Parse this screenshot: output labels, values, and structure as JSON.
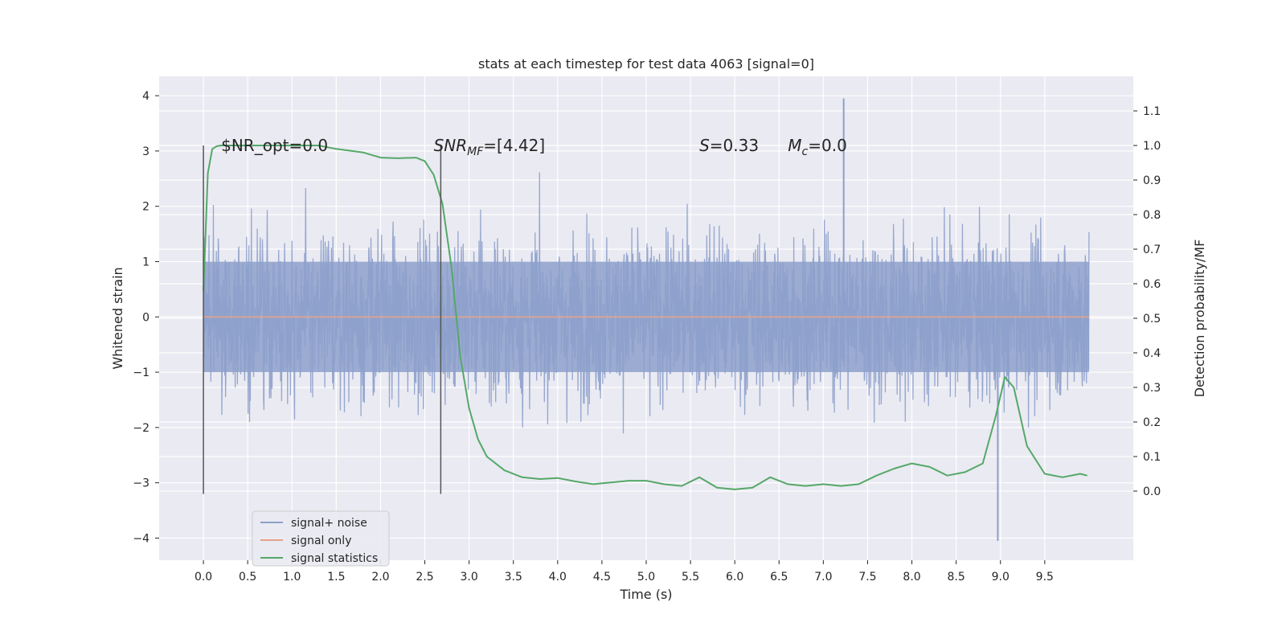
{
  "chart_data": {
    "type": "line",
    "title": "stats at each timestep for test data 4063 [signal=0]",
    "xlabel": "Time (s)",
    "ylabel": "Whitened strain",
    "ylabel_right": "Detection probability/MF",
    "xlim": [
      -0.5,
      10.5
    ],
    "ylim": [
      -4.4,
      4.35
    ],
    "ylim_right": [
      -0.2,
      1.2
    ],
    "x_ticks": [
      0.0,
      0.5,
      1.0,
      1.5,
      2.0,
      2.5,
      3.0,
      3.5,
      4.0,
      4.5,
      5.0,
      5.5,
      6.0,
      6.5,
      7.0,
      7.5,
      8.0,
      8.5,
      9.0,
      9.5
    ],
    "x_tick_labels": [
      "0.0",
      "0.5",
      "1.0",
      "1.5",
      "2.0",
      "2.5",
      "3.0",
      "3.5",
      "4.0",
      "4.5",
      "5.0",
      "5.5",
      "6.0",
      "6.5",
      "7.0",
      "7.5",
      "8.0",
      "8.5",
      "9.0",
      "9.5"
    ],
    "y_ticks": [
      -4,
      -3,
      -2,
      -1,
      0,
      1,
      2,
      3,
      4
    ],
    "y_tick_labels": [
      "−4",
      "−3",
      "−2",
      "−1",
      "0",
      "1",
      "2",
      "3",
      "4"
    ],
    "y_ticks_right": [
      0.0,
      0.1,
      0.2,
      0.3,
      0.4,
      0.5,
      0.6,
      0.7,
      0.8,
      0.9,
      1.0,
      1.1
    ],
    "y_tick_labels_right": [
      "0.0",
      "0.1",
      "0.2",
      "0.3",
      "0.4",
      "0.5",
      "0.6",
      "0.7",
      "0.8",
      "0.9",
      "1.0",
      "1.1"
    ],
    "grid": true,
    "legend_position": "lower-left",
    "annotations": [
      {
        "text": "$NR_opt=0.0",
        "x": 0.2,
        "y": 3.1
      },
      {
        "text": "SNR",
        "sub": "MF",
        "suffix": "=[4.42]",
        "x": 2.6,
        "y": 3.1,
        "italic": true
      },
      {
        "text": "S",
        "suffix": "=0.33",
        "x": 5.6,
        "y": 3.1,
        "italic": true
      },
      {
        "text": "M",
        "sub": "c",
        "suffix": "=0.0",
        "x": 6.6,
        "y": 3.1,
        "italic": true
      }
    ],
    "vlines": [
      {
        "x": 0.0,
        "ymin": -3.2,
        "ymax": 3.1
      },
      {
        "x": 2.68,
        "ymin": -3.2,
        "ymax": 3.1
      }
    ],
    "series": [
      {
        "name": "signal+ noise",
        "color": "#8da0cb",
        "axis": "left",
        "kind": "noise",
        "x_range": [
          0.0,
          10.0
        ],
        "envelope": {
          "core_amplitude": 1.0,
          "max_peak": 3.95,
          "min_peak": -4.05
        }
      },
      {
        "name": "signal only",
        "color": "#e5a389",
        "axis": "left",
        "x": [
          0.0,
          10.0
        ],
        "values": [
          0.0,
          0.0
        ]
      },
      {
        "name": "signal statistics",
        "color": "#55a868",
        "axis": "right",
        "x": [
          0.0,
          0.05,
          0.1,
          0.15,
          0.2,
          0.3,
          0.5,
          0.8,
          1.0,
          1.3,
          1.5,
          1.8,
          2.0,
          2.2,
          2.4,
          2.5,
          2.6,
          2.7,
          2.8,
          2.9,
          3.0,
          3.1,
          3.2,
          3.4,
          3.6,
          3.8,
          4.0,
          4.2,
          4.4,
          4.6,
          4.8,
          5.0,
          5.2,
          5.4,
          5.6,
          5.8,
          6.0,
          6.2,
          6.4,
          6.6,
          6.8,
          7.0,
          7.2,
          7.4,
          7.6,
          7.8,
          8.0,
          8.2,
          8.4,
          8.6,
          8.8,
          8.95,
          9.05,
          9.15,
          9.3,
          9.5,
          9.7,
          9.9,
          9.98
        ],
        "values": [
          0.58,
          0.92,
          0.99,
          0.998,
          1.0,
          1.0,
          1.0,
          1.0,
          1.0,
          1.0,
          0.99,
          0.98,
          0.965,
          0.963,
          0.965,
          0.955,
          0.915,
          0.83,
          0.65,
          0.39,
          0.24,
          0.15,
          0.1,
          0.06,
          0.04,
          0.035,
          0.038,
          0.028,
          0.02,
          0.025,
          0.03,
          0.03,
          0.02,
          0.015,
          0.04,
          0.01,
          0.005,
          0.01,
          0.04,
          0.02,
          0.015,
          0.02,
          0.015,
          0.02,
          0.045,
          0.065,
          0.08,
          0.07,
          0.045,
          0.055,
          0.08,
          0.22,
          0.33,
          0.3,
          0.13,
          0.05,
          0.04,
          0.05,
          0.045
        ]
      }
    ]
  }
}
